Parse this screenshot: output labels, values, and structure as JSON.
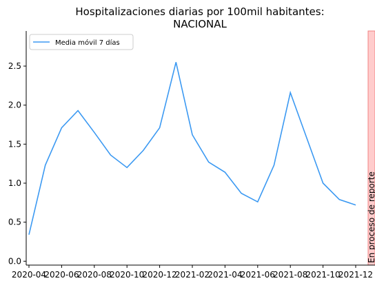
{
  "chart_data": {
    "type": "line",
    "title": "Hospitalizaciones diarias por 100mil habitantes:",
    "subtitle": "NACIONAL",
    "x": [
      "2020-04",
      "2020-05",
      "2020-06",
      "2020-07",
      "2020-08",
      "2020-09",
      "2020-10",
      "2020-11",
      "2020-12",
      "2021-01",
      "2021-02",
      "2021-03",
      "2021-04",
      "2021-05",
      "2021-06",
      "2021-07",
      "2021-08",
      "2021-09",
      "2021-10",
      "2021-11",
      "2021-12"
    ],
    "series": [
      {
        "name": "Media móvil 7 días",
        "color": "#3b99f2",
        "values": [
          0.34,
          1.23,
          1.71,
          1.93,
          1.65,
          1.36,
          1.2,
          1.42,
          1.71,
          2.55,
          1.62,
          1.27,
          1.14,
          0.87,
          0.76,
          1.23,
          2.16,
          1.58,
          1.0,
          0.79,
          0.72
        ]
      }
    ],
    "ylim": [
      -0.05,
      2.95
    ],
    "yticks": [
      {
        "value": 0,
        "label": "0.0"
      },
      0.5,
      {
        "value": 1,
        "label": "1.0"
      },
      1.5,
      {
        "value": 2,
        "label": "2.0"
      },
      2.5
    ],
    "xticks": [
      "2020-04",
      "2020-06",
      "2020-08",
      "2020-10",
      "2020-12",
      "2021-02",
      "2021-04",
      "2021-06",
      "2021-08",
      "2021-10",
      "2021-12"
    ],
    "annotation": "En proceso de reporte",
    "legend": "upper left"
  }
}
